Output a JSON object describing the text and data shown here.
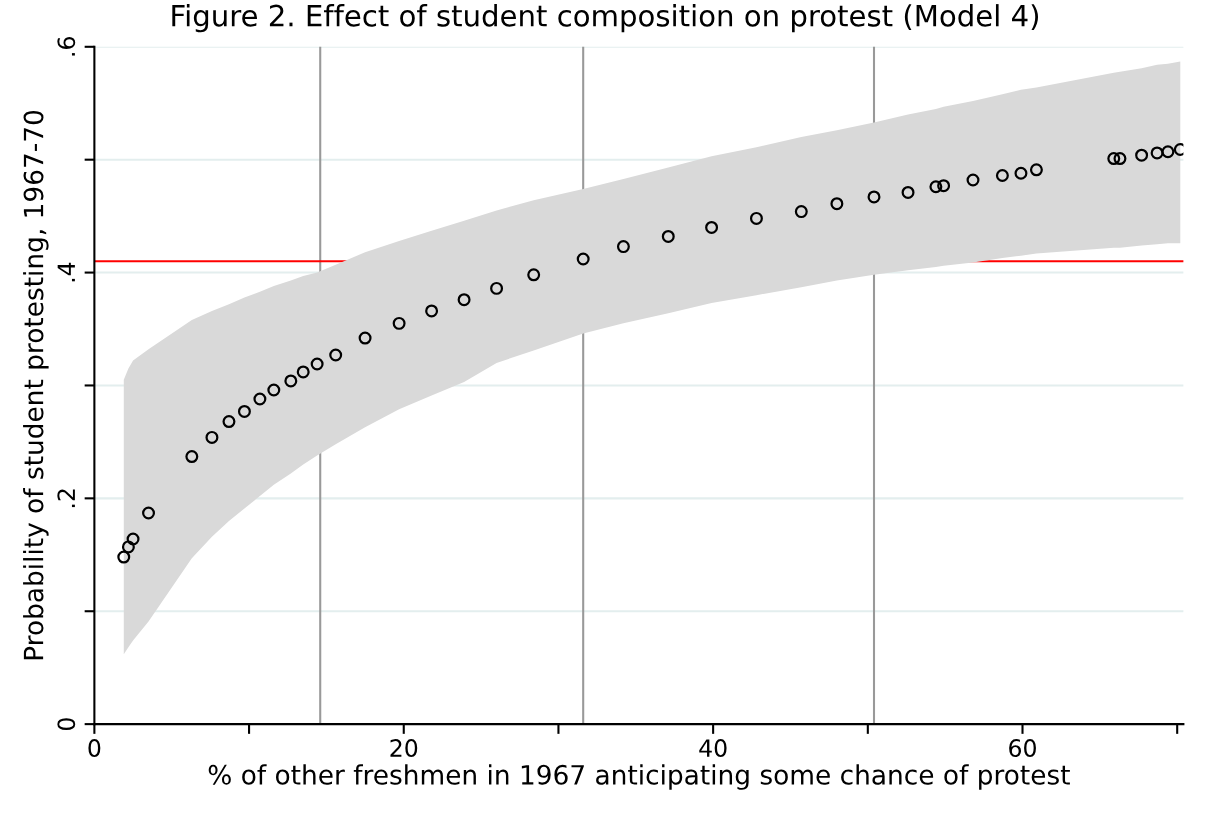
{
  "chart_data": {
    "type": "scatter",
    "title": "Figure 2. Effect of student composition on protest (Model 4)",
    "xlabel": "% of other freshmen in 1967 anticipating some chance of protest",
    "ylabel": "Probability of student protesting, 1967-70",
    "marker": "circle",
    "grid": "y",
    "legend": false,
    "xlim": [
      0,
      70.4
    ],
    "xticks": [
      0,
      {
        "value": 10,
        "label": null
      },
      20,
      {
        "value": 30,
        "label": null
      },
      40,
      {
        "value": 50,
        "label": null
      },
      60,
      {
        "value": 70,
        "label": null
      }
    ],
    "ylim": [
      0,
      0.6
    ],
    "yticks": [
      {
        "value": 0,
        "label": "0"
      },
      {
        "value": 0.1,
        "label": null
      },
      {
        "value": 0.2,
        "label": ".2"
      },
      {
        "value": 0.3,
        "label": null
      },
      {
        "value": 0.4,
        "label": ".4"
      },
      {
        "value": 0.5,
        "label": null
      },
      {
        "value": 0.6,
        "label": ".6"
      }
    ],
    "ref_lines": [
      {
        "axis": "x",
        "value": 14.6,
        "label": null,
        "color": "#999999"
      },
      {
        "axis": "x",
        "value": 31.6,
        "label": null,
        "color": "#999999"
      },
      {
        "axis": "x",
        "value": 50.4,
        "label": null,
        "color": "#999999"
      },
      {
        "axis": "y",
        "value": 0.41,
        "label": null,
        "color": "#ff0000"
      }
    ],
    "series": [
      {
        "color": "#000000",
        "x": [
          1.9,
          2.2,
          2.5,
          3.5,
          6.3,
          7.6,
          8.7,
          9.7,
          10.7,
          11.6,
          12.7,
          13.5,
          14.4,
          15.6,
          17.5,
          19.7,
          21.8,
          23.9,
          26.0,
          28.4,
          31.6,
          34.2,
          37.1,
          39.9,
          42.8,
          45.7,
          48.0,
          50.4,
          52.6,
          54.4,
          54.9,
          56.8,
          58.7,
          59.9,
          60.9,
          65.9,
          66.3,
          67.7,
          68.7,
          69.4,
          70.2
        ],
        "values": [
          0.148,
          0.157,
          0.164,
          0.187,
          0.237,
          0.254,
          0.268,
          0.277,
          0.288,
          0.296,
          0.304,
          0.312,
          0.319,
          0.327,
          0.342,
          0.355,
          0.366,
          0.376,
          0.386,
          0.398,
          0.412,
          0.423,
          0.432,
          0.44,
          0.448,
          0.454,
          0.461,
          0.467,
          0.471,
          0.476,
          0.477,
          0.482,
          0.486,
          0.488,
          0.491,
          0.501,
          0.501,
          0.504,
          0.506,
          0.507,
          0.509
        ],
        "lower": [
          0.062,
          0.068,
          0.074,
          0.091,
          0.147,
          0.166,
          0.18,
          0.191,
          0.202,
          0.212,
          0.222,
          0.23,
          0.238,
          0.248,
          0.263,
          0.279,
          0.291,
          0.303,
          0.32,
          0.331,
          0.346,
          0.355,
          0.364,
          0.373,
          0.38,
          0.387,
          0.393,
          0.398,
          0.402,
          0.405,
          0.406,
          0.409,
          0.413,
          0.415,
          0.417,
          0.422,
          0.422,
          0.424,
          0.425,
          0.426,
          0.426
        ],
        "upper": [
          0.305,
          0.315,
          0.322,
          0.332,
          0.358,
          0.366,
          0.372,
          0.378,
          0.383,
          0.388,
          0.393,
          0.397,
          0.4,
          0.407,
          0.418,
          0.428,
          0.437,
          0.446,
          0.455,
          0.464,
          0.474,
          0.483,
          0.493,
          0.503,
          0.511,
          0.52,
          0.526,
          0.533,
          0.54,
          0.545,
          0.547,
          0.552,
          0.558,
          0.562,
          0.564,
          0.577,
          0.578,
          0.581,
          0.584,
          0.585,
          0.587
        ]
      }
    ]
  }
}
